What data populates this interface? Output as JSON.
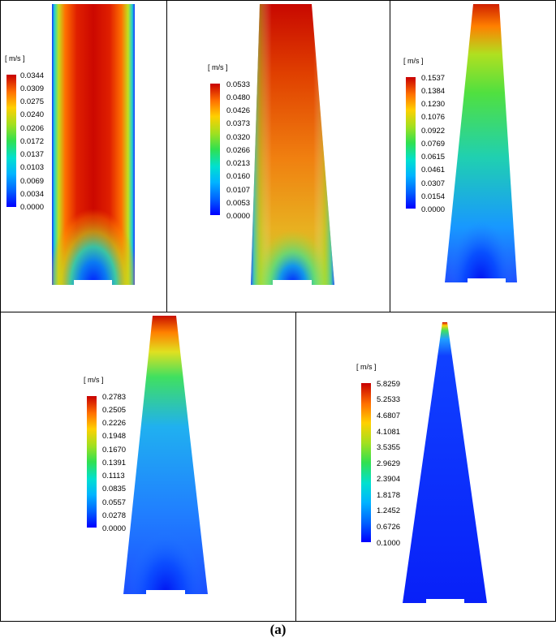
{
  "caption": "(a)",
  "panels": [
    {
      "unit": "[ m/s ]",
      "ticks": [
        "0.0344",
        "0.0309",
        "0.0275",
        "0.0240",
        "0.0206",
        "0.0172",
        "0.0137",
        "0.0103",
        "0.0069",
        "0.0034",
        "0.0000"
      ],
      "max_value": 0.0344,
      "min_value": 0.0
    },
    {
      "unit": "[ m/s ]",
      "ticks": [
        "0.0533",
        "0.0480",
        "0.0426",
        "0.0373",
        "0.0320",
        "0.0266",
        "0.0213",
        "0.0160",
        "0.0107",
        "0.0053",
        "0.0000"
      ],
      "max_value": 0.0533,
      "min_value": 0.0
    },
    {
      "unit": "[ m/s ]",
      "ticks": [
        "0.1537",
        "0.1384",
        "0.1230",
        "0.1076",
        "0.0922",
        "0.0769",
        "0.0615",
        "0.0461",
        "0.0307",
        "0.0154",
        "0.0000"
      ],
      "max_value": 0.1537,
      "min_value": 0.0
    },
    {
      "unit": "[ m/s ]",
      "ticks": [
        "0.2783",
        "0.2505",
        "0.2226",
        "0.1948",
        "0.1670",
        "0.1391",
        "0.1113",
        "0.0835",
        "0.0557",
        "0.0278",
        "0.0000"
      ],
      "max_value": 0.2783,
      "min_value": 0.0
    },
    {
      "unit": "[ m/s ]",
      "ticks": [
        "5.8259",
        "5.2533",
        "4.6807",
        "4.1081",
        "3.5355",
        "2.9629",
        "2.3904",
        "1.8178",
        "1.2452",
        "0.6726",
        "0.1000"
      ],
      "max_value": 5.8259,
      "min_value": 0.1
    }
  ],
  "colors": {
    "scale": [
      "#0000ff",
      "#0080ff",
      "#00c8ff",
      "#00e8b0",
      "#40e040",
      "#a8e020",
      "#ffd000",
      "#ff8000",
      "#d00000"
    ]
  }
}
